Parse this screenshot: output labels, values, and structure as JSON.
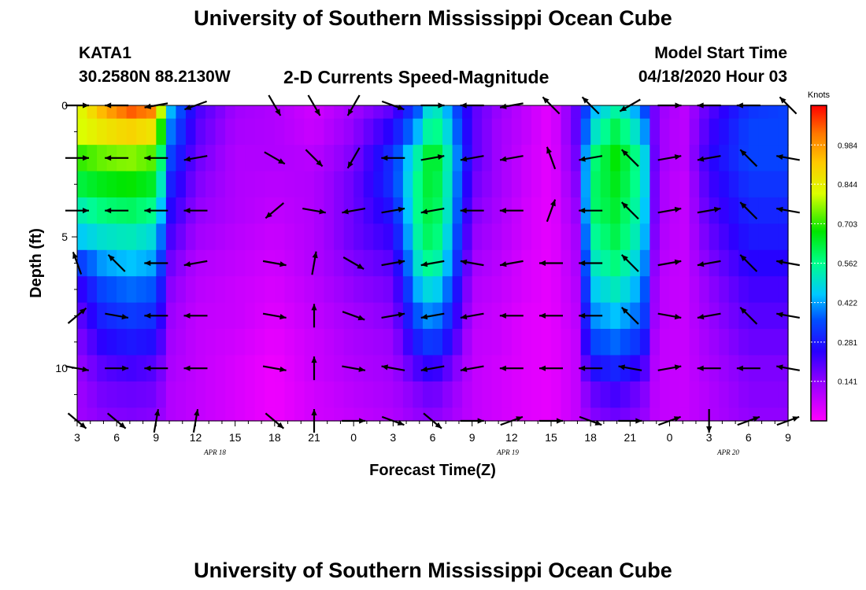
{
  "page": {
    "title_top": "University of Southern Mississippi Ocean Cube",
    "title_bottom": "University of Southern Mississippi Ocean Cube"
  },
  "header": {
    "station": "KATA1",
    "coords": "30.2580N 88.2130W",
    "subtitle": "2-D Currents Speed-Magnitude",
    "model_label": "Model Start Time",
    "model_time": "04/18/2020 Hour 03"
  },
  "chart_data": {
    "type": "heatmap",
    "title": "2-D Currents Speed-Magnitude",
    "xlabel": "Forecast Time(Z)",
    "ylabel": "Depth (ft)",
    "x_tick_labels": [
      "3",
      "6",
      "9",
      "12",
      "15",
      "18",
      "21",
      "0",
      "3",
      "6",
      "9",
      "12",
      "15",
      "18",
      "21",
      "0",
      "3",
      "6",
      "9"
    ],
    "date_labels": [
      "APR 18",
      "APR 19",
      "APR 20"
    ],
    "y_ticks": [
      0,
      5,
      10
    ],
    "ylim": [
      0,
      12
    ],
    "xlim_hours": [
      0,
      54
    ],
    "colorbar": {
      "label": "Knots",
      "ticks": [
        "0.984",
        "0.844",
        "0.703",
        "0.562",
        "0.422",
        "0.281",
        "0.141"
      ],
      "range": [
        0,
        1.125
      ]
    },
    "depths_ft": [
      0,
      1,
      2,
      3,
      4,
      5,
      6,
      7,
      8,
      9,
      10,
      11,
      12
    ],
    "speed_profiles_knots": [
      {
        "hour": 0,
        "speed": [
          0.8,
          0.8,
          0.7,
          0.62,
          0.52,
          0.45,
          0.32,
          0.22,
          0.18,
          0.15,
          0.13,
          0.12,
          0.12
        ]
      },
      {
        "hour": 2,
        "speed": [
          0.95,
          0.86,
          0.74,
          0.66,
          0.58,
          0.5,
          0.42,
          0.35,
          0.3,
          0.25,
          0.2,
          0.17,
          0.15
        ]
      },
      {
        "hour": 4,
        "speed": [
          1.05,
          0.9,
          0.76,
          0.68,
          0.6,
          0.52,
          0.45,
          0.38,
          0.33,
          0.28,
          0.22,
          0.18,
          0.16
        ]
      },
      {
        "hour": 6,
        "speed": [
          1.0,
          0.86,
          0.72,
          0.64,
          0.56,
          0.48,
          0.42,
          0.36,
          0.31,
          0.26,
          0.2,
          0.17,
          0.15
        ]
      },
      {
        "hour": 7,
        "speed": [
          0.45,
          0.4,
          0.35,
          0.3,
          0.26,
          0.22,
          0.18,
          0.15,
          0.13,
          0.12,
          0.11,
          0.1,
          0.1
        ]
      },
      {
        "hour": 9,
        "speed": [
          0.22,
          0.2,
          0.18,
          0.16,
          0.14,
          0.12,
          0.1,
          0.09,
          0.08,
          0.08,
          0.08,
          0.08,
          0.08
        ]
      },
      {
        "hour": 12,
        "speed": [
          0.12,
          0.11,
          0.1,
          0.1,
          0.1,
          0.09,
          0.08,
          0.07,
          0.07,
          0.06,
          0.05,
          0.05,
          0.05
        ]
      },
      {
        "hour": 15,
        "speed": [
          0.1,
          0.1,
          0.1,
          0.09,
          0.08,
          0.07,
          0.06,
          0.05,
          0.04,
          0.03,
          0.02,
          0.02,
          0.02
        ]
      },
      {
        "hour": 18,
        "speed": [
          0.06,
          0.07,
          0.09,
          0.1,
          0.1,
          0.1,
          0.1,
          0.09,
          0.08,
          0.07,
          0.07,
          0.06,
          0.06
        ]
      },
      {
        "hour": 21,
        "speed": [
          0.12,
          0.14,
          0.16,
          0.18,
          0.18,
          0.18,
          0.16,
          0.14,
          0.12,
          0.11,
          0.1,
          0.09,
          0.08
        ]
      },
      {
        "hour": 24,
        "speed": [
          0.2,
          0.26,
          0.32,
          0.32,
          0.28,
          0.24,
          0.2,
          0.17,
          0.15,
          0.13,
          0.12,
          0.11,
          0.1
        ]
      },
      {
        "hour": 26,
        "speed": [
          0.38,
          0.45,
          0.55,
          0.58,
          0.58,
          0.56,
          0.52,
          0.45,
          0.38,
          0.3,
          0.22,
          0.16,
          0.14
        ]
      },
      {
        "hour": 27,
        "speed": [
          0.55,
          0.6,
          0.68,
          0.66,
          0.64,
          0.62,
          0.58,
          0.5,
          0.42,
          0.34,
          0.25,
          0.18,
          0.15
        ]
      },
      {
        "hour": 28,
        "speed": [
          0.45,
          0.5,
          0.55,
          0.54,
          0.53,
          0.5,
          0.46,
          0.4,
          0.34,
          0.28,
          0.2,
          0.15,
          0.13
        ]
      },
      {
        "hour": 30,
        "speed": [
          0.2,
          0.2,
          0.2,
          0.18,
          0.16,
          0.14,
          0.12,
          0.1,
          0.09,
          0.08,
          0.08,
          0.08,
          0.08
        ]
      },
      {
        "hour": 32,
        "speed": [
          0.13,
          0.12,
          0.12,
          0.12,
          0.11,
          0.1,
          0.09,
          0.08,
          0.07,
          0.07,
          0.06,
          0.06,
          0.06
        ]
      },
      {
        "hour": 34,
        "speed": [
          0.08,
          0.08,
          0.07,
          0.07,
          0.06,
          0.06,
          0.05,
          0.05,
          0.04,
          0.04,
          0.04,
          0.04,
          0.04
        ]
      },
      {
        "hour": 36,
        "speed": [
          0.03,
          0.03,
          0.03,
          0.03,
          0.03,
          0.03,
          0.03,
          0.03,
          0.03,
          0.03,
          0.03,
          0.03,
          0.03
        ]
      },
      {
        "hour": 38,
        "speed": [
          0.2,
          0.2,
          0.18,
          0.16,
          0.14,
          0.12,
          0.11,
          0.1,
          0.09,
          0.08,
          0.08,
          0.08,
          0.08
        ]
      },
      {
        "hour": 39,
        "speed": [
          0.42,
          0.48,
          0.56,
          0.58,
          0.58,
          0.54,
          0.5,
          0.45,
          0.4,
          0.34,
          0.26,
          0.18,
          0.15
        ]
      },
      {
        "hour": 41,
        "speed": [
          0.55,
          0.62,
          0.68,
          0.66,
          0.64,
          0.62,
          0.58,
          0.52,
          0.45,
          0.38,
          0.3,
          0.22,
          0.18
        ]
      },
      {
        "hour": 43,
        "speed": [
          0.38,
          0.45,
          0.52,
          0.52,
          0.5,
          0.48,
          0.44,
          0.4,
          0.36,
          0.3,
          0.22,
          0.16,
          0.14
        ]
      },
      {
        "hour": 44,
        "speed": [
          0.14,
          0.13,
          0.13,
          0.12,
          0.12,
          0.11,
          0.1,
          0.09,
          0.09,
          0.08,
          0.08,
          0.08,
          0.08
        ]
      },
      {
        "hour": 46,
        "speed": [
          0.08,
          0.08,
          0.08,
          0.07,
          0.07,
          0.07,
          0.07,
          0.07,
          0.07,
          0.07,
          0.07,
          0.07,
          0.07
        ]
      },
      {
        "hour": 48,
        "speed": [
          0.2,
          0.22,
          0.24,
          0.22,
          0.2,
          0.18,
          0.16,
          0.14,
          0.13,
          0.12,
          0.11,
          0.1,
          0.1
        ]
      },
      {
        "hour": 51,
        "speed": [
          0.32,
          0.34,
          0.34,
          0.32,
          0.3,
          0.28,
          0.25,
          0.22,
          0.2,
          0.18,
          0.16,
          0.15,
          0.14
        ]
      },
      {
        "hour": 54,
        "speed": [
          0.34,
          0.34,
          0.34,
          0.32,
          0.3,
          0.28,
          0.25,
          0.22,
          0.2,
          0.18,
          0.16,
          0.15,
          0.14
        ]
      }
    ],
    "vector_columns_hours": [
      0,
      3,
      6,
      9,
      15,
      18,
      21,
      24,
      27,
      30,
      33,
      36,
      39,
      42,
      45,
      48,
      51,
      54
    ],
    "vector_depths_ft": [
      0,
      2,
      4,
      6,
      8,
      10,
      12
    ],
    "vector_angles_deg": [
      [
        0,
        180,
        190,
        200,
        300,
        300,
        240,
        340,
        0,
        180,
        190,
        135,
        135,
        210,
        0,
        180,
        180,
        135
      ],
      [
        0,
        180,
        180,
        190,
        330,
        315,
        240,
        180,
        10,
        190,
        190,
        110,
        190,
        135,
        10,
        190,
        135,
        170
      ],
      [
        0,
        180,
        180,
        180,
        220,
        350,
        190,
        10,
        190,
        180,
        180,
        70,
        180,
        135,
        10,
        10,
        135,
        170
      ],
      [
        110,
        135,
        180,
        190,
        350,
        80,
        330,
        10,
        190,
        170,
        190,
        180,
        180,
        135,
        10,
        190,
        135,
        170
      ],
      [
        40,
        350,
        180,
        180,
        350,
        90,
        340,
        10,
        190,
        190,
        180,
        180,
        180,
        135,
        350,
        190,
        135,
        170
      ],
      [
        350,
        0,
        180,
        180,
        350,
        90,
        350,
        170,
        190,
        190,
        180,
        180,
        180,
        170,
        10,
        180,
        180,
        170
      ],
      [
        320,
        320,
        80,
        80,
        320,
        90,
        0,
        340,
        320,
        0,
        20,
        0,
        340,
        0,
        20,
        270,
        20,
        20
      ]
    ]
  }
}
